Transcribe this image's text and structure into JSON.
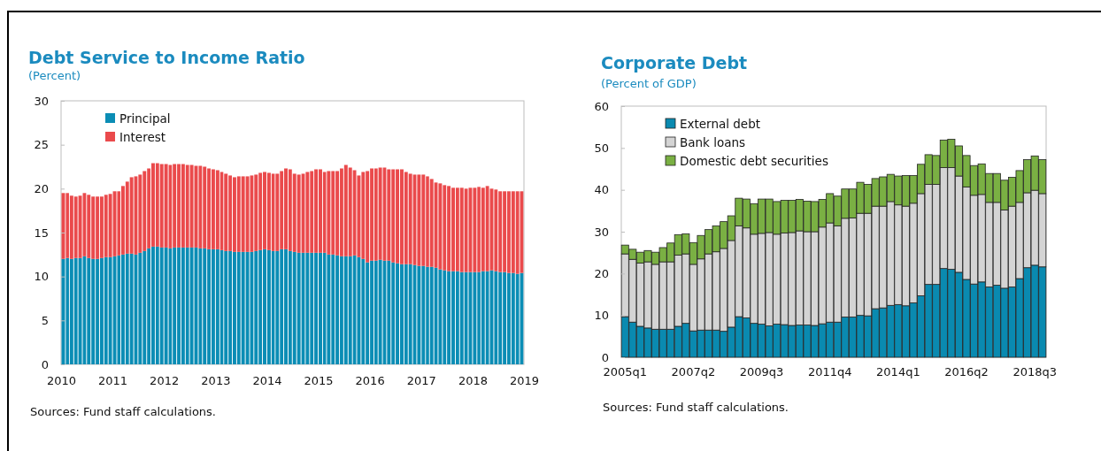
{
  "chart_data": [
    {
      "type": "bar",
      "title": "Debt Service to Income Ratio",
      "subtitle": "(Percent)",
      "annotations": [
        "Sources: Fund staff calculations."
      ],
      "stacked": true,
      "legend": "top left",
      "grid": false,
      "x": [
        "2010-01",
        "2010-02",
        "2010-03",
        "2010-04",
        "2010-05",
        "2010-06",
        "2010-07",
        "2010-08",
        "2010-09",
        "2010-10",
        "2010-11",
        "2010-12",
        "2011-01",
        "2011-02",
        "2011-03",
        "2011-04",
        "2011-05",
        "2011-06",
        "2011-07",
        "2011-08",
        "2011-09",
        "2011-10",
        "2011-11",
        "2011-12",
        "2012-01",
        "2012-02",
        "2012-03",
        "2012-04",
        "2012-05",
        "2012-06",
        "2012-07",
        "2012-08",
        "2012-09",
        "2012-10",
        "2012-11",
        "2012-12",
        "2013-01",
        "2013-02",
        "2013-03",
        "2013-04",
        "2013-05",
        "2013-06",
        "2013-07",
        "2013-08",
        "2013-09",
        "2013-10",
        "2013-11",
        "2013-12",
        "2014-01",
        "2014-02",
        "2014-03",
        "2014-04",
        "2014-05",
        "2014-06",
        "2014-07",
        "2014-08",
        "2014-09",
        "2014-10",
        "2014-11",
        "2014-12",
        "2015-01",
        "2015-02",
        "2015-03",
        "2015-04",
        "2015-05",
        "2015-06",
        "2015-07",
        "2015-08",
        "2015-09",
        "2015-10",
        "2015-11",
        "2015-12",
        "2016-01",
        "2016-02",
        "2016-03",
        "2016-04",
        "2016-05",
        "2016-06",
        "2016-07",
        "2016-08",
        "2016-09",
        "2016-10",
        "2016-11",
        "2016-12",
        "2017-01",
        "2017-02",
        "2017-03",
        "2017-04",
        "2017-05",
        "2017-06",
        "2017-07",
        "2017-08",
        "2017-09",
        "2017-10",
        "2017-11",
        "2017-12",
        "2018-01",
        "2018-02",
        "2018-03",
        "2018-04",
        "2018-05",
        "2018-06",
        "2018-07",
        "2018-08",
        "2018-09",
        "2018-10",
        "2018-11",
        "2018-12"
      ],
      "xlim": [
        "2010",
        "2019"
      ],
      "xticks": [
        {
          "value": "2010",
          "label": "2010"
        },
        {
          "value": "2011",
          "label": "2011"
        },
        {
          "value": "2012",
          "label": "2012"
        },
        {
          "value": "2013",
          "label": "2013"
        },
        {
          "value": "2014",
          "label": "2014"
        },
        {
          "value": "2015",
          "label": "2015"
        },
        {
          "value": "2016",
          "label": "2016"
        },
        {
          "value": "2017",
          "label": "2017"
        },
        {
          "value": "2018",
          "label": "2018"
        },
        {
          "value": "2019",
          "label": "2019"
        }
      ],
      "ylim": [
        0,
        30
      ],
      "yticks": [
        0,
        5,
        10,
        15,
        20,
        25,
        30
      ],
      "series": [
        {
          "name": "Principal",
          "color": "#0b8db5",
          "values": [
            12.0,
            12.1,
            12.0,
            12.1,
            12.1,
            12.3,
            12.1,
            12.0,
            12.0,
            12.1,
            12.2,
            12.2,
            12.3,
            12.4,
            12.5,
            12.6,
            12.6,
            12.5,
            12.7,
            12.9,
            13.2,
            13.4,
            13.4,
            13.3,
            13.3,
            13.2,
            13.3,
            13.3,
            13.3,
            13.3,
            13.3,
            13.3,
            13.2,
            13.2,
            13.1,
            13.1,
            13.1,
            13.0,
            12.9,
            12.9,
            12.8,
            12.8,
            12.8,
            12.8,
            12.8,
            12.9,
            13.0,
            13.1,
            13.0,
            12.9,
            12.9,
            13.1,
            13.1,
            12.9,
            12.8,
            12.7,
            12.7,
            12.7,
            12.7,
            12.7,
            12.7,
            12.7,
            12.5,
            12.5,
            12.4,
            12.3,
            12.3,
            12.3,
            12.4,
            12.2,
            12.0,
            11.6,
            11.8,
            11.8,
            11.9,
            11.8,
            11.8,
            11.6,
            11.5,
            11.4,
            11.4,
            11.4,
            11.3,
            11.2,
            11.2,
            11.1,
            11.1,
            11.0,
            10.8,
            10.7,
            10.6,
            10.6,
            10.6,
            10.5,
            10.5,
            10.5,
            10.5,
            10.5,
            10.6,
            10.6,
            10.7,
            10.6,
            10.5,
            10.5,
            10.4,
            10.4,
            10.3,
            10.4
          ]
        },
        {
          "name": "Interest",
          "color": "#ea4a4c",
          "values": [
            7.5,
            7.4,
            7.2,
            7.0,
            7.1,
            7.2,
            7.2,
            7.1,
            7.1,
            7.0,
            7.1,
            7.2,
            7.4,
            7.3,
            7.8,
            8.2,
            8.7,
            8.9,
            8.9,
            9.1,
            9.1,
            9.5,
            9.5,
            9.5,
            9.5,
            9.5,
            9.5,
            9.5,
            9.5,
            9.4,
            9.4,
            9.3,
            9.4,
            9.3,
            9.2,
            9.1,
            9.0,
            8.9,
            8.8,
            8.6,
            8.5,
            8.6,
            8.6,
            8.6,
            8.7,
            8.7,
            8.8,
            8.8,
            8.8,
            8.8,
            8.8,
            8.9,
            9.2,
            9.3,
            8.9,
            8.9,
            9.0,
            9.2,
            9.3,
            9.5,
            9.5,
            9.2,
            9.5,
            9.5,
            9.6,
            10.0,
            10.4,
            10.1,
            9.7,
            9.3,
            9.9,
            10.4,
            10.5,
            10.5,
            10.5,
            10.6,
            10.4,
            10.6,
            10.7,
            10.8,
            10.5,
            10.3,
            10.3,
            10.4,
            10.4,
            10.3,
            10.0,
            9.7,
            9.8,
            9.7,
            9.7,
            9.5,
            9.5,
            9.6,
            9.5,
            9.6,
            9.6,
            9.7,
            9.5,
            9.7,
            9.3,
            9.3,
            9.2,
            9.2,
            9.3,
            9.3,
            9.4,
            9.3
          ]
        }
      ]
    },
    {
      "type": "bar",
      "title": "Corporate Debt",
      "subtitle": "(Percent of GDP)",
      "annotations": [
        "Sources: Fund staff calculations."
      ],
      "stacked": true,
      "legend": "top left",
      "grid": false,
      "categories": [
        "2005q1",
        null,
        null,
        null,
        null,
        null,
        null,
        null,
        null,
        "2007q2",
        null,
        null,
        null,
        null,
        null,
        null,
        null,
        null,
        "2009q3",
        null,
        null,
        null,
        null,
        null,
        null,
        null,
        null,
        "2011q4",
        null,
        null,
        null,
        null,
        null,
        null,
        null,
        null,
        "2014q1",
        null,
        null,
        null,
        null,
        null,
        null,
        null,
        null,
        "2016q2",
        null,
        null,
        null,
        null,
        null,
        null,
        null,
        null,
        "2018q3",
        null
      ],
      "ylim": [
        0,
        60
      ],
      "yticks": [
        0,
        10,
        20,
        30,
        40,
        50,
        60
      ],
      "series": [
        {
          "name": "External debt",
          "color": "#0a8ab0",
          "values": [
            9.7,
            8.4,
            7.4,
            7.0,
            6.7,
            6.7,
            6.7,
            7.4,
            8.1,
            6.3,
            6.5,
            6.5,
            6.5,
            6.2,
            7.2,
            9.7,
            9.4,
            8.1,
            7.9,
            7.5,
            7.9,
            7.8,
            7.6,
            7.7,
            7.7,
            7.6,
            8.0,
            8.4,
            8.4,
            9.6,
            9.6,
            10.0,
            9.9,
            11.6,
            11.8,
            12.4,
            12.6,
            12.3,
            13.0,
            14.7,
            17.4,
            17.4,
            21.2,
            21.0,
            20.3,
            18.6,
            17.5,
            18.0,
            16.8,
            17.2,
            16.5,
            16.8,
            18.8,
            21.4,
            22.0,
            21.6
          ]
        },
        {
          "name": "Bank loans",
          "color": "#d4d4d4",
          "values": [
            15.0,
            15.0,
            15.1,
            15.8,
            15.5,
            16.1,
            16.1,
            17.0,
            16.6,
            15.9,
            17.0,
            18.2,
            18.7,
            19.8,
            20.7,
            21.7,
            21.5,
            21.3,
            21.7,
            22.3,
            21.5,
            21.9,
            22.2,
            22.5,
            22.3,
            22.4,
            23.1,
            23.7,
            23.0,
            23.6,
            23.7,
            24.4,
            24.5,
            24.5,
            24.3,
            24.8,
            23.8,
            23.8,
            23.8,
            24.4,
            23.9,
            23.9,
            24.1,
            24.3,
            23.0,
            22.1,
            21.2,
            20.9,
            20.2,
            19.8,
            18.7,
            19.3,
            18.2,
            17.9,
            17.9,
            17.5
          ]
        },
        {
          "name": "Domestic debt securities",
          "color": "#7ab043",
          "values": [
            2.1,
            2.4,
            2.6,
            2.7,
            2.9,
            3.4,
            4.5,
            4.9,
            4.8,
            5.2,
            5.6,
            5.8,
            6.2,
            6.4,
            5.9,
            6.6,
            6.9,
            7.3,
            8.2,
            8.0,
            7.8,
            7.8,
            7.7,
            7.5,
            7.3,
            7.2,
            6.6,
            7.0,
            7.1,
            7.0,
            6.9,
            7.4,
            6.9,
            6.6,
            7.0,
            6.5,
            6.9,
            7.3,
            6.6,
            7.0,
            7.1,
            6.9,
            6.6,
            6.8,
            7.2,
            7.5,
            7.1,
            7.3,
            6.9,
            6.9,
            7.1,
            6.9,
            7.6,
            7.9,
            8.2,
            8.1
          ]
        }
      ]
    }
  ]
}
